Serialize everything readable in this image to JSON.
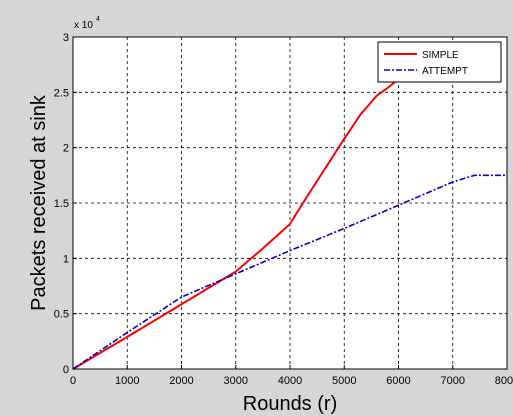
{
  "colors": {
    "figure_background": "#d6d6d6",
    "axes_background": "#ffffff",
    "simple": "#ff0000",
    "attempt": "#0000cc",
    "grid": "#000000"
  },
  "chart_data": {
    "type": "line",
    "title": "",
    "xlabel": "Rounds (r)",
    "ylabel": "Packets received at sink",
    "xlim": [
      0,
      8000
    ],
    "ylim": [
      0,
      30000
    ],
    "x_ticks": [
      0,
      1000,
      2000,
      3000,
      4000,
      5000,
      6000,
      7000,
      8000
    ],
    "x_tick_labels": [
      "0",
      "1000",
      "2000",
      "3000",
      "4000",
      "5000",
      "6000",
      "7000",
      "8000"
    ],
    "y_ticks": [
      0,
      5000,
      10000,
      15000,
      20000,
      25000,
      30000
    ],
    "y_tick_labels": [
      "0",
      "0.5",
      "1",
      "1.5",
      "2",
      "2.5",
      "3"
    ],
    "y_exponent_label": "x 10",
    "y_exponent_power": "4",
    "grid": true,
    "legend_position": "top-right",
    "series": [
      {
        "name": "SIMPLE",
        "style": "solid",
        "color": "#ff0000",
        "x": [
          0,
          1000,
          2000,
          3000,
          3500,
          4000,
          4200,
          4500,
          5000,
          5300,
          5600,
          5800,
          6000,
          6300,
          6500
        ],
        "y": [
          0,
          2900,
          5850,
          8800,
          10900,
          13100,
          14700,
          17000,
          20800,
          23000,
          24700,
          25400,
          26200,
          27400,
          28200
        ]
      },
      {
        "name": "ATTEMPT",
        "style": "dashdot",
        "color": "#0000cc",
        "x": [
          0,
          1000,
          2000,
          3000,
          4000,
          5000,
          6000,
          7000,
          7400,
          7500,
          8000
        ],
        "y": [
          0,
          3300,
          6500,
          8600,
          10700,
          12700,
          14800,
          16900,
          17500,
          17500,
          17500
        ]
      }
    ]
  }
}
